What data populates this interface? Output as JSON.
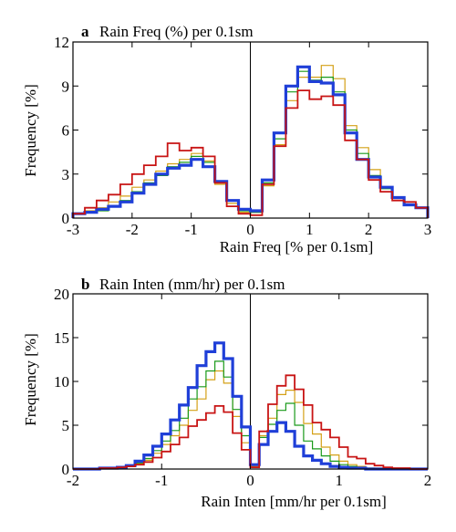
{
  "chart_data": [
    {
      "type": "step",
      "panel": "a",
      "title": "Rain Freq (%) per 0.1sm",
      "xlabel": "Rain Freq [% per 0.1sm]",
      "ylabel": "Frequency [%]",
      "xlim": [
        -3,
        3
      ],
      "ylim": [
        0,
        12
      ],
      "xticks": [
        -3,
        -2,
        -1,
        0,
        1,
        2,
        3
      ],
      "yticks": [
        0,
        3,
        6,
        9,
        12
      ],
      "edges": [
        -3.0,
        -2.8,
        -2.6,
        -2.4,
        -2.2,
        -2.0,
        -1.8,
        -1.6,
        -1.4,
        -1.2,
        -1.0,
        -0.8,
        -0.6,
        -0.4,
        -0.2,
        0.0,
        0.2,
        0.4,
        0.6,
        0.8,
        1.0,
        1.2,
        1.4,
        1.6,
        1.8,
        2.0,
        2.2,
        2.4,
        2.6,
        2.8,
        3.0
      ],
      "zero_line": true,
      "series": [
        {
          "color": "#d4a017",
          "width": 1.2,
          "values": [
            0.3,
            0.5,
            0.7,
            1.1,
            1.5,
            2.1,
            2.6,
            3.2,
            3.7,
            4.0,
            4.4,
            3.9,
            2.3,
            1.0,
            0.4,
            0.4,
            2.2,
            5.0,
            8.0,
            9.6,
            9.6,
            10.4,
            9.5,
            6.3,
            4.8,
            3.3,
            2.1,
            1.4,
            1.1,
            0.7
          ]
        },
        {
          "color": "#1a9a1a",
          "width": 1.2,
          "values": [
            0.3,
            0.4,
            0.5,
            0.8,
            1.2,
            1.8,
            2.4,
            2.9,
            3.5,
            3.8,
            4.2,
            3.8,
            2.5,
            1.2,
            0.5,
            0.4,
            2.4,
            5.4,
            8.6,
            10.0,
            9.4,
            9.6,
            8.6,
            6.0,
            4.4,
            2.9,
            2.0,
            1.4,
            0.9,
            0.7
          ]
        },
        {
          "color": "#1f3fd8",
          "width": 3.2,
          "values": [
            0.3,
            0.4,
            0.6,
            0.8,
            1.1,
            1.7,
            2.3,
            3.0,
            3.4,
            3.6,
            4.0,
            3.5,
            2.5,
            1.2,
            0.6,
            0.5,
            2.6,
            5.8,
            9.0,
            10.3,
            9.3,
            9.2,
            8.4,
            5.8,
            4.0,
            2.8,
            2.1,
            1.4,
            0.9,
            0.7
          ]
        },
        {
          "color": "#c81414",
          "width": 1.8,
          "values": [
            0.3,
            0.7,
            1.2,
            1.6,
            2.3,
            3.0,
            3.6,
            4.2,
            5.1,
            4.6,
            4.8,
            4.2,
            2.4,
            0.8,
            0.3,
            0.2,
            2.3,
            4.9,
            7.5,
            8.7,
            8.1,
            8.3,
            7.7,
            5.3,
            4.0,
            2.6,
            1.8,
            1.2,
            1.1,
            0.7
          ]
        }
      ]
    },
    {
      "type": "step",
      "panel": "b",
      "title": "Rain Inten (mm/hr) per 0.1sm",
      "xlabel": "Rain Inten [mm/hr per 0.1sm]",
      "ylabel": "Frequency [%]",
      "xlim": [
        -2,
        2
      ],
      "ylim": [
        0,
        20
      ],
      "xticks": [
        -2,
        -1,
        0,
        1,
        2
      ],
      "yticks": [
        0,
        5,
        10,
        15,
        20
      ],
      "edges": [
        -2.0,
        -1.9,
        -1.8,
        -1.7,
        -1.6,
        -1.5,
        -1.4,
        -1.3,
        -1.2,
        -1.1,
        -1.0,
        -0.9,
        -0.8,
        -0.7,
        -0.6,
        -0.5,
        -0.4,
        -0.3,
        -0.2,
        -0.1,
        0.0,
        0.1,
        0.2,
        0.3,
        0.4,
        0.5,
        0.6,
        0.7,
        0.8,
        0.9,
        1.0,
        1.1,
        1.2,
        1.3,
        1.4,
        1.5,
        1.6,
        1.7,
        1.8,
        1.9,
        2.0
      ],
      "zero_line": true,
      "series": [
        {
          "color": "#d4a017",
          "width": 1.2,
          "values": [
            0.0,
            0.0,
            0.0,
            0.1,
            0.1,
            0.2,
            0.3,
            0.6,
            1.0,
            1.8,
            2.8,
            3.8,
            5.0,
            6.7,
            8.0,
            10.2,
            11.2,
            9.8,
            6.0,
            3.0,
            0.3,
            3.8,
            5.8,
            8.5,
            9.0,
            7.6,
            5.2,
            4.0,
            2.5,
            1.6,
            0.9,
            0.5,
            0.3,
            0.1,
            0.1,
            0.0,
            0.0,
            0.0,
            0.0,
            0.0
          ]
        },
        {
          "color": "#1a9a1a",
          "width": 1.2,
          "values": [
            0.0,
            0.0,
            0.0,
            0.1,
            0.1,
            0.2,
            0.3,
            0.7,
            1.2,
            2.1,
            3.2,
            4.4,
            5.8,
            8.0,
            9.4,
            11.2,
            12.3,
            10.5,
            6.8,
            3.8,
            0.5,
            3.6,
            5.1,
            6.7,
            7.5,
            5.0,
            3.2,
            2.3,
            1.5,
            0.9,
            0.5,
            0.3,
            0.2,
            0.1,
            0.0,
            0.0,
            0.0,
            0.0,
            0.0,
            0.0
          ]
        },
        {
          "color": "#1f3fd8",
          "width": 3.2,
          "values": [
            0.0,
            0.0,
            0.0,
            0.1,
            0.1,
            0.2,
            0.4,
            0.9,
            1.6,
            2.6,
            4.0,
            5.6,
            7.3,
            9.3,
            11.8,
            13.4,
            14.4,
            12.6,
            8.3,
            4.8,
            0.5,
            2.8,
            4.3,
            5.3,
            4.3,
            2.6,
            1.5,
            1.0,
            0.6,
            0.3,
            0.2,
            0.1,
            0.1,
            0.0,
            0.0,
            0.0,
            0.0,
            0.0,
            0.0,
            0.0
          ]
        },
        {
          "color": "#c81414",
          "width": 1.8,
          "values": [
            0.0,
            0.0,
            0.0,
            0.1,
            0.1,
            0.2,
            0.3,
            0.5,
            0.8,
            1.3,
            2.0,
            2.8,
            3.6,
            4.9,
            5.6,
            6.4,
            7.2,
            6.5,
            4.1,
            2.2,
            0.2,
            4.3,
            7.4,
            9.5,
            10.7,
            9.1,
            7.3,
            5.3,
            4.5,
            3.6,
            2.5,
            1.4,
            1.2,
            0.6,
            0.4,
            0.2,
            0.1,
            0.1,
            0.0,
            0.0
          ]
        }
      ]
    }
  ]
}
